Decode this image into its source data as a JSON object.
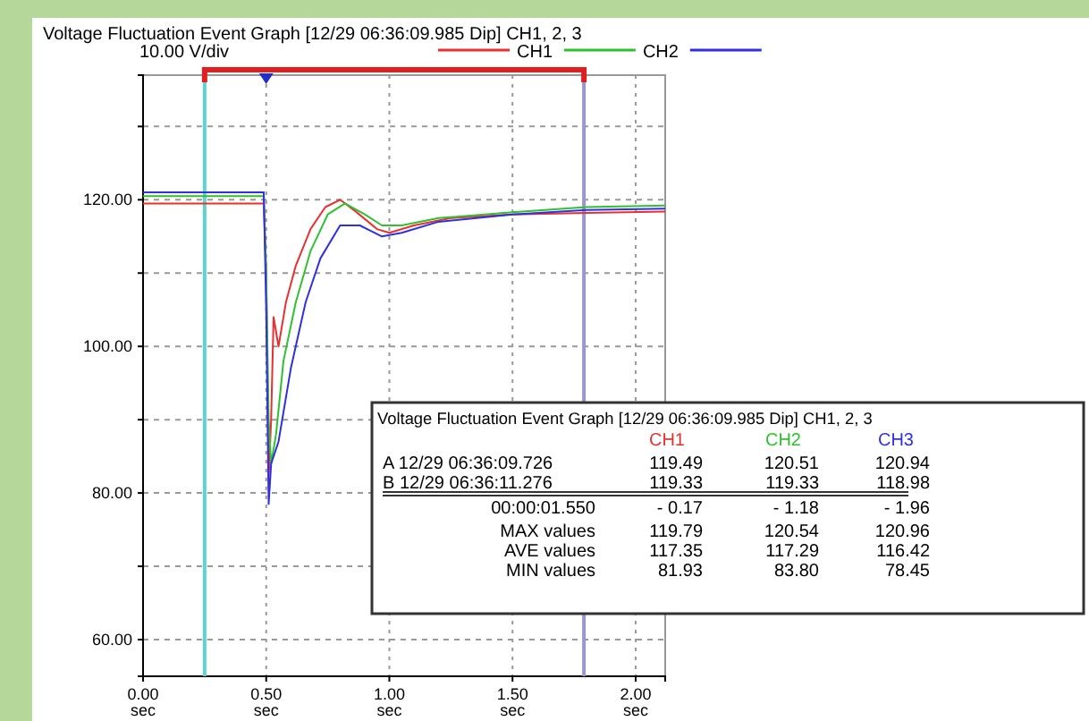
{
  "chart_data": [
    {
      "type": "line",
      "title": "Voltage Fluctuation Event Graph [12/29 06:36:09.985  Dip] CH1, 2, 3",
      "annotations": [
        "10.00 V/div"
      ],
      "xlim": [
        0,
        2.12
      ],
      "ylim": [
        55,
        137
      ],
      "xticks": [
        {
          "value": 0,
          "label": "0.00 sec"
        },
        {
          "value": 0.5,
          "label": "0.50 sec"
        },
        {
          "value": 1,
          "label": "1.00 sec"
        },
        {
          "value": 1.5,
          "label": "1.50 sec"
        },
        {
          "value": 2,
          "label": "2.00 sec"
        }
      ],
      "yticks": [
        {
          "value": 60,
          "label": "60.00"
        },
        {
          "value": 70,
          "label": null
        },
        {
          "value": 80,
          "label": "80.00"
        },
        {
          "value": 90,
          "label": null
        },
        {
          "value": 100,
          "label": "100.00"
        },
        {
          "value": 110,
          "label": null
        },
        {
          "value": 120,
          "label": "120.00"
        },
        {
          "value": 130,
          "label": null
        }
      ],
      "grid": true,
      "legend": "top",
      "line_style": "solid",
      "marker": "none",
      "ref_lines": [
        {
          "axis": "x",
          "value": 0.25,
          "color": "#5fd3d3"
        },
        {
          "axis": "x",
          "value": 1.79,
          "color": "#9a96d6"
        }
      ],
      "series": [
        {
          "name": "CH1",
          "color": "#e83030",
          "x": [
            0,
            0.49,
            0.5,
            0.505,
            0.51,
            0.52,
            0.53,
            0.55,
            0.58,
            0.62,
            0.68,
            0.74,
            0.8,
            0.86,
            0.95,
            1.0,
            1.1,
            1.25,
            1.5,
            1.8,
            2.12
          ],
          "values": [
            119.5,
            119.5,
            110,
            96,
            82,
            90,
            104,
            100,
            106,
            111,
            116,
            119,
            120,
            118.5,
            116,
            115.5,
            116.5,
            117.5,
            118,
            118.2,
            118.4
          ]
        },
        {
          "name": "CH2",
          "color": "#30c030",
          "x": [
            0,
            0.49,
            0.5,
            0.51,
            0.52,
            0.54,
            0.57,
            0.62,
            0.68,
            0.75,
            0.82,
            0.9,
            0.97,
            1.05,
            1.2,
            1.5,
            1.8,
            2.12
          ],
          "values": [
            120.5,
            120.5,
            110,
            90,
            84,
            88,
            98,
            106,
            113,
            118,
            119.5,
            118,
            116.5,
            116.5,
            117.5,
            118.3,
            119,
            119.2
          ]
        },
        {
          "color": "#3030e0",
          "x": [
            0,
            0.49,
            0.5,
            0.51,
            0.52,
            0.55,
            0.6,
            0.66,
            0.72,
            0.8,
            0.88,
            0.97,
            1.05,
            1.2,
            1.5,
            1.8,
            2.12
          ],
          "values": [
            121,
            121,
            105,
            78.5,
            84,
            87,
            97,
            106,
            112,
            116.5,
            116.5,
            115,
            115.5,
            117,
            118,
            118.6,
            118.8
          ]
        }
      ]
    },
    {
      "type": "other",
      "title": "Voltage Fluctuation Event Graph [12/29 06:36:09.985  Dip] CH1, 2, 3",
      "annotations": [
        "CH1",
        "CH2",
        "CH3",
        "A 12/29 06:36:09.726",
        "119.49",
        "120.51",
        "120.94",
        "B 12/29 06:36:11.276",
        "119.33",
        "119.33",
        "118.98",
        "00:00:01.550",
        "- 0.17",
        "- 1.18",
        "- 1.96",
        "MAX values",
        "119.79",
        "120.54",
        "120.96",
        "AVE values",
        "117.35",
        "117.29",
        "116.42",
        "MIN values",
        "81.93",
        "83.80",
        "78.45"
      ]
    }
  ]
}
